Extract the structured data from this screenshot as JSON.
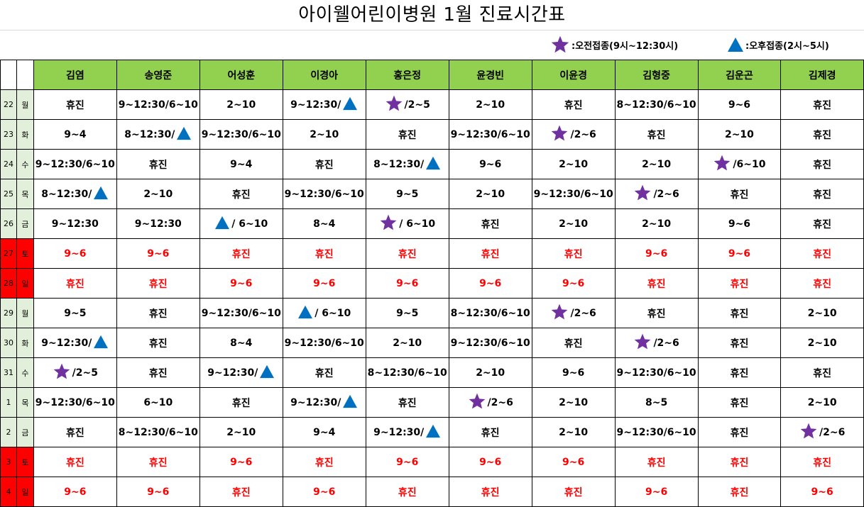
{
  "title": "아이웰어린이병원  1월 진료시간표",
  "legend": [
    {
      "symbol": "star",
      "text": ":오전접종(9시~12:30시)"
    },
    {
      "symbol": "triangle",
      "text": ":오후접종(2시~5시)"
    }
  ],
  "colors": {
    "header_bg": "#92d050",
    "day_bg": "#e2efda",
    "weekend_red": "#ff0000",
    "star": "#7030a0",
    "triangle": "#0070c0"
  },
  "doctors": [
    "김염",
    "송영준",
    "어성훈",
    "이경아",
    "홍은정",
    "윤경빈",
    "이윤경",
    "김형중",
    "김운곤",
    "김제경"
  ],
  "rows": [
    {
      "day": "22",
      "dow": "월",
      "weekend": false,
      "cells": [
        "휴진",
        "9~12:30/6~10",
        "2~10",
        "9~12:30/[T]",
        "[S] /2~5",
        "2~10",
        "휴진",
        "8~12:30/6~10",
        "9~6",
        "휴진"
      ]
    },
    {
      "day": "23",
      "dow": "화",
      "weekend": false,
      "cells": [
        "9~4",
        "8~12:30/[T]",
        "9~12:30/6~10",
        "2~10",
        "휴진",
        "9~12:30/6~10",
        "[S]/2~6",
        "휴진",
        "2~10",
        "휴진"
      ]
    },
    {
      "day": "24",
      "dow": "수",
      "weekend": false,
      "cells": [
        "9~12:30/6~10",
        "휴진",
        "9~4",
        "휴진",
        "8~12:30/[T]",
        "9~6",
        "2~10",
        "2~10",
        "[S] /6~10",
        "휴진"
      ]
    },
    {
      "day": "25",
      "dow": "목",
      "weekend": false,
      "cells": [
        "8~12:30/[T]",
        "2~10",
        "휴진",
        "9~12:30/6~10",
        "9~5",
        "2~10",
        "9~12:30/6~10",
        "[S]/2~6",
        "휴진",
        "휴진"
      ]
    },
    {
      "day": "26",
      "dow": "금",
      "weekend": false,
      "cells": [
        "9~12:30",
        "9~12:30",
        "[T] / 6~10",
        "8~4",
        "[S]/ 6~10",
        "휴진",
        "2~10",
        "2~10",
        "9~6",
        "휴진"
      ]
    },
    {
      "day": "27",
      "dow": "토",
      "weekend": true,
      "cells": [
        "9~6",
        "9~6",
        "휴진",
        "휴진",
        "휴진",
        "휴진",
        "휴진",
        "9~6",
        "9~6",
        "휴진"
      ]
    },
    {
      "day": "28",
      "dow": "일",
      "weekend": true,
      "cells": [
        "휴진",
        "휴진",
        "9~6",
        "9~6",
        "9~6",
        "9~6",
        "9~6",
        "휴진",
        "휴진",
        "휴진"
      ]
    },
    {
      "day": "29",
      "dow": "월",
      "weekend": false,
      "cells": [
        "9~5",
        "휴진",
        "9~12:30/6~10",
        "[T] / 6~10",
        "9~5",
        "8~12:30/6~10",
        "[S]/2~6",
        "휴진",
        "휴진",
        "2~10"
      ]
    },
    {
      "day": "30",
      "dow": "화",
      "weekend": false,
      "cells": [
        "9~12:30/ [T]",
        "휴진",
        "8~4",
        "9~12:30/6~10",
        "2~10",
        "9~12:30/6~10",
        "휴진",
        "[S]/2~6",
        "휴진",
        "2~10"
      ]
    },
    {
      "day": "31",
      "dow": "수",
      "weekend": false,
      "cells": [
        "[S] /2~5",
        "휴진",
        "9~12:30/[T]",
        "휴진",
        "8~12:30/6~10",
        "2~10",
        "9~6",
        "9~12:30/6~10",
        "휴진",
        "휴진"
      ]
    },
    {
      "day": "1",
      "dow": "목",
      "weekend": false,
      "cells": [
        "9~12:30/6~10",
        "6~10",
        "휴진",
        "9~12:30/[T]",
        "휴진",
        "[S] /2~6",
        "2~10",
        "8~5",
        "휴진",
        "2~10"
      ]
    },
    {
      "day": "2",
      "dow": "금",
      "weekend": false,
      "cells": [
        "휴진",
        "8~12:30/6~10",
        "2~10",
        "9~4",
        "9~12:30/[T]",
        "휴진",
        "2~10",
        "9~12:30/6~10",
        "휴진",
        "[S] /2~6"
      ]
    },
    {
      "day": "3",
      "dow": "토",
      "weekend": true,
      "cells": [
        "휴진",
        "휴진",
        "9~6",
        "휴진",
        "9~6",
        "9~6",
        "9~6",
        "휴진",
        "휴진",
        "휴진"
      ]
    },
    {
      "day": "4",
      "dow": "일",
      "weekend": true,
      "cells": [
        "9~6",
        "9~6",
        "휴진",
        "9~6",
        "휴진",
        "휴진",
        "휴진",
        "9~6",
        "휴진",
        "9~6"
      ]
    }
  ]
}
